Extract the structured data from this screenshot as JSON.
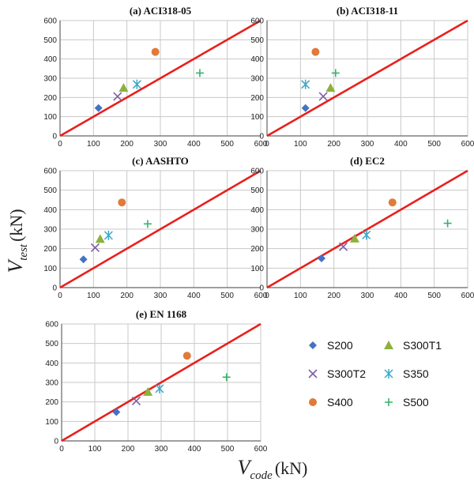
{
  "figure": {
    "ylabel_main": "V",
    "ylabel_sub": "test",
    "ylabel_unit": "(kN)",
    "xlabel_main": "V",
    "xlabel_sub": "code",
    "xlabel_unit": "(kN)"
  },
  "legend": [
    {
      "name": "S200",
      "marker": "diamond",
      "color": "#4472C4"
    },
    {
      "name": "S300T1",
      "marker": "triangle",
      "color": "#8DB13D"
    },
    {
      "name": "S300T2",
      "marker": "x",
      "color": "#7E5FA6"
    },
    {
      "name": "S350",
      "marker": "star",
      "color": "#38A8C8"
    },
    {
      "name": "S400",
      "marker": "circle",
      "color": "#E07B39"
    },
    {
      "name": "S500",
      "marker": "plus",
      "color": "#36B36B"
    }
  ],
  "colors": {
    "reference_line": "#E8201C",
    "grid": "#c8c8c8",
    "axis": "#666666"
  },
  "chart_data": [
    {
      "type": "scatter",
      "title": "(a) ACI318-05",
      "xlim": [
        0,
        600
      ],
      "ylim": [
        0,
        600
      ],
      "xticks": [
        0,
        100,
        200,
        300,
        400,
        500,
        600
      ],
      "yticks": [
        0,
        100,
        200,
        300,
        400,
        500,
        600
      ],
      "grid": true,
      "reference_line": [
        [
          0,
          0
        ],
        [
          600,
          600
        ]
      ],
      "series": [
        {
          "name": "S200",
          "x": [
            115
          ],
          "y": [
            145
          ]
        },
        {
          "name": "S300T1",
          "x": [
            190
          ],
          "y": [
            250
          ]
        },
        {
          "name": "S300T2",
          "x": [
            172
          ],
          "y": [
            205
          ]
        },
        {
          "name": "S350",
          "x": [
            230
          ],
          "y": [
            268
          ]
        },
        {
          "name": "S400",
          "x": [
            285
          ],
          "y": [
            437
          ]
        },
        {
          "name": "S500",
          "x": [
            418
          ],
          "y": [
            327
          ]
        }
      ]
    },
    {
      "type": "scatter",
      "title": "(b) ACI318-11",
      "xlim": [
        0,
        600
      ],
      "ylim": [
        0,
        600
      ],
      "xticks": [
        0,
        100,
        200,
        300,
        400,
        500,
        600
      ],
      "yticks": [
        0,
        100,
        200,
        300,
        400,
        500,
        600
      ],
      "grid": true,
      "reference_line": [
        [
          0,
          0
        ],
        [
          600,
          600
        ]
      ],
      "series": [
        {
          "name": "S200",
          "x": [
            115
          ],
          "y": [
            145
          ]
        },
        {
          "name": "S300T1",
          "x": [
            190
          ],
          "y": [
            250
          ]
        },
        {
          "name": "S300T2",
          "x": [
            168
          ],
          "y": [
            205
          ]
        },
        {
          "name": "S350",
          "x": [
            115
          ],
          "y": [
            268
          ]
        },
        {
          "name": "S400",
          "x": [
            145
          ],
          "y": [
            437
          ]
        },
        {
          "name": "S500",
          "x": [
            205
          ],
          "y": [
            327
          ]
        }
      ]
    },
    {
      "type": "scatter",
      "title": "(c) AASHTO",
      "xlim": [
        0,
        600
      ],
      "ylim": [
        0,
        600
      ],
      "xticks": [
        0,
        100,
        200,
        300,
        400,
        500,
        600
      ],
      "yticks": [
        0,
        100,
        200,
        300,
        400,
        500,
        600
      ],
      "grid": true,
      "reference_line": [
        [
          0,
          0
        ],
        [
          600,
          600
        ]
      ],
      "series": [
        {
          "name": "S200",
          "x": [
            70
          ],
          "y": [
            145
          ]
        },
        {
          "name": "S300T1",
          "x": [
            120
          ],
          "y": [
            250
          ]
        },
        {
          "name": "S300T2",
          "x": [
            105
          ],
          "y": [
            205
          ]
        },
        {
          "name": "S350",
          "x": [
            145
          ],
          "y": [
            268
          ]
        },
        {
          "name": "S400",
          "x": [
            185
          ],
          "y": [
            437
          ]
        },
        {
          "name": "S500",
          "x": [
            262
          ],
          "y": [
            327
          ]
        }
      ]
    },
    {
      "type": "scatter",
      "title": "(d) EC2",
      "xlim": [
        0,
        600
      ],
      "ylim": [
        0,
        600
      ],
      "xticks": [
        0,
        100,
        200,
        300,
        400,
        500,
        600
      ],
      "yticks": [
        0,
        100,
        200,
        300,
        400,
        500,
        600
      ],
      "grid": true,
      "reference_line": [
        [
          0,
          0
        ],
        [
          600,
          600
        ]
      ],
      "series": [
        {
          "name": "S200",
          "x": [
            163
          ],
          "y": [
            150
          ]
        },
        {
          "name": "S300T1",
          "x": [
            262
          ],
          "y": [
            252
          ]
        },
        {
          "name": "S300T2",
          "x": [
            228
          ],
          "y": [
            210
          ]
        },
        {
          "name": "S350",
          "x": [
            297
          ],
          "y": [
            270
          ]
        },
        {
          "name": "S400",
          "x": [
            375
          ],
          "y": [
            437
          ]
        },
        {
          "name": "S500",
          "x": [
            540
          ],
          "y": [
            330
          ]
        }
      ]
    },
    {
      "type": "scatter",
      "title": "(e) EN 1168",
      "xlim": [
        0,
        600
      ],
      "ylim": [
        0,
        600
      ],
      "xticks": [
        0,
        100,
        200,
        300,
        400,
        500,
        600
      ],
      "yticks": [
        0,
        100,
        200,
        300,
        400,
        500,
        600
      ],
      "grid": true,
      "reference_line": [
        [
          0,
          0
        ],
        [
          600,
          600
        ]
      ],
      "series": [
        {
          "name": "S200",
          "x": [
            165
          ],
          "y": [
            148
          ]
        },
        {
          "name": "S300T1",
          "x": [
            260
          ],
          "y": [
            252
          ]
        },
        {
          "name": "S300T2",
          "x": [
            225
          ],
          "y": [
            205
          ]
        },
        {
          "name": "S350",
          "x": [
            295
          ],
          "y": [
            268
          ]
        },
        {
          "name": "S400",
          "x": [
            378
          ],
          "y": [
            437
          ]
        },
        {
          "name": "S500",
          "x": [
            497
          ],
          "y": [
            327
          ]
        }
      ]
    }
  ]
}
